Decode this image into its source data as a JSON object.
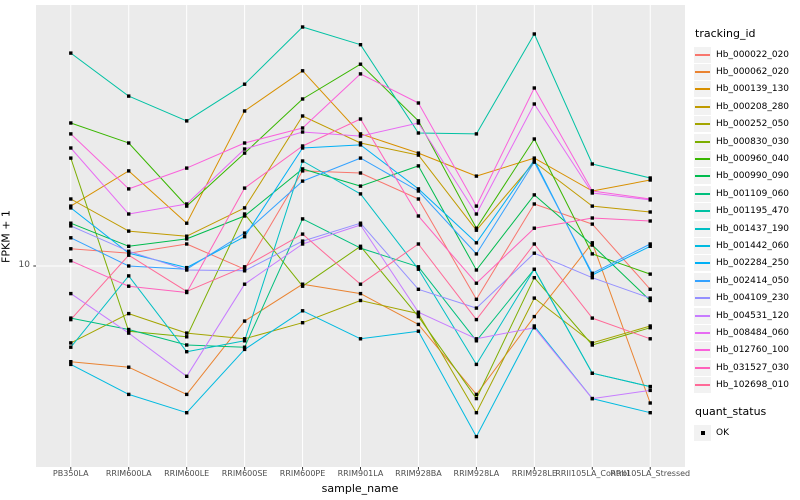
{
  "chart_data": {
    "type": "line",
    "title": "",
    "xlabel": "sample_name",
    "ylabel": "FPKM + 1",
    "y_scale": "log10",
    "y_ticks": [
      10
    ],
    "y_tick_labels": [
      "10"
    ],
    "ylim": [
      1.0,
      260
    ],
    "grid": true,
    "legend_position": "right",
    "panel_bg": "#EBEBEB",
    "grid_color": "#FFFFFF",
    "point_color": "#000000",
    "point_shape": "filled-square",
    "legend_titles": {
      "color": "tracking_id",
      "shape": "quant_status"
    },
    "shape_legend": [
      {
        "label": "OK",
        "shape": "filled-square",
        "color": "#000000"
      }
    ],
    "x": [
      "PB350LA",
      "RRIM600LA",
      "RRIM600LE",
      "RRIM600SE",
      "RRIM600PE",
      "RRIM901LA",
      "RRIM928BA",
      "RRIM928LA",
      "RRIM928LE",
      "RRII105LA_Control",
      "RRII105LA_Stressed"
    ],
    "series": [
      {
        "name": "Hb_000022_020",
        "color": "#F8766D",
        "values": [
          12.5,
          11.8,
          13.3,
          9.6,
          34.2,
          33.3,
          23.8,
          6.5,
          22.3,
          17.2,
          7.4
        ]
      },
      {
        "name": "Hb_000062_020",
        "color": "#EA8331",
        "values": [
          2.9,
          2.7,
          1.9,
          4.9,
          7.9,
          7.0,
          4.7,
          1.9,
          5.2,
          13.5,
          1.7
        ]
      },
      {
        "name": "Hb_000139_130",
        "color": "#D89000",
        "values": [
          21.7,
          34.2,
          17.4,
          74.3,
          125.0,
          55.2,
          43.1,
          32.0,
          40.4,
          26.4,
          30.4
        ]
      },
      {
        "name": "Hb_000208_280",
        "color": "#C09B00",
        "values": [
          23.8,
          15.7,
          14.7,
          21.2,
          69.6,
          49.1,
          42.0,
          15.9,
          38.4,
          21.7,
          20.1
        ]
      },
      {
        "name": "Hb_000252_050",
        "color": "#A3A500",
        "values": [
          3.7,
          5.4,
          4.2,
          3.9,
          4.8,
          6.4,
          5.4,
          1.5,
          6.6,
          3.7,
          4.6
        ]
      },
      {
        "name": "Hb_000830_030",
        "color": "#7CAE00",
        "values": [
          40.4,
          4.3,
          4.0,
          19.6,
          7.7,
          12.9,
          5.2,
          1.8,
          8.6,
          3.6,
          4.5
        ]
      },
      {
        "name": "Hb_000960_040",
        "color": "#39B600",
        "values": [
          63.6,
          49.1,
          21.7,
          43.1,
          86.7,
          136.0,
          65.3,
          16.3,
          51.7,
          11.7,
          9.0
        ]
      },
      {
        "name": "Hb_000990_090",
        "color": "#00BB4E",
        "values": [
          17.4,
          12.9,
          14.2,
          19.1,
          35.1,
          28.1,
          36.5,
          9.5,
          25.1,
          13.1,
          6.4
        ]
      },
      {
        "name": "Hb_001109_060",
        "color": "#00BF7D",
        "values": [
          5.1,
          4.4,
          3.6,
          3.5,
          18.4,
          12.6,
          9.9,
          3.8,
          9.6,
          2.5,
          2.1
        ]
      },
      {
        "name": "Hb_001195_470",
        "color": "#00C1A3",
        "values": [
          157.0,
          90.0,
          65.3,
          105.0,
          220.0,
          175.0,
          55.9,
          55.2,
          201.0,
          37.4,
          31.2
        ]
      },
      {
        "name": "Hb_001437_190",
        "color": "#00BFC4",
        "values": [
          3.5,
          8.8,
          3.3,
          3.8,
          38.9,
          25.4,
          9.6,
          2.8,
          9.6,
          2.5,
          2.1
        ]
      },
      {
        "name": "Hb_001442_060",
        "color": "#00BAE0",
        "values": [
          2.8,
          1.9,
          1.5,
          3.4,
          5.6,
          3.9,
          4.3,
          1.1,
          4.6,
          1.8,
          1.5
        ]
      },
      {
        "name": "Hb_002284_250",
        "color": "#00B0F6",
        "values": [
          21.2,
          11.8,
          9.8,
          14.6,
          46.0,
          47.9,
          27.1,
          13.5,
          39.4,
          8.9,
          12.9
        ]
      },
      {
        "name": "Hb_002414_050",
        "color": "#35A2FF",
        "values": [
          14.4,
          10.0,
          9.6,
          15.3,
          30.0,
          40.4,
          26.4,
          11.7,
          38.4,
          9.1,
          13.3
        ]
      },
      {
        "name": "Hb_004109_230",
        "color": "#9590FF",
        "values": [
          16.8,
          12.1,
          9.5,
          9.4,
          13.8,
          17.4,
          7.4,
          5.8,
          11.8,
          8.6,
          6.6
        ]
      },
      {
        "name": "Hb_004531_120",
        "color": "#C77CFF",
        "values": [
          7.0,
          4.2,
          2.4,
          7.9,
          13.3,
          17.0,
          5.5,
          3.9,
          4.5,
          1.8,
          2.0
        ]
      },
      {
        "name": "Hb_008484_060",
        "color": "#E76BF3",
        "values": [
          46.0,
          19.6,
          22.3,
          45.4,
          56.6,
          53.7,
          63.6,
          19.6,
          81.3,
          25.7,
          23.5
        ]
      },
      {
        "name": "Hb_012760_100",
        "color": "#FA62DB",
        "values": [
          55.2,
          27.1,
          35.5,
          49.1,
          59.6,
          120.0,
          82.4,
          21.7,
          100.0,
          26.4,
          23.8
        ]
      },
      {
        "name": "Hb_031527_030",
        "color": "#FF62BC",
        "values": [
          10.7,
          7.7,
          7.1,
          27.4,
          47.2,
          67.0,
          19.1,
          8.0,
          16.3,
          18.6,
          17.9
        ]
      },
      {
        "name": "Hb_102698_010",
        "color": "#FF6A98",
        "values": [
          5.0,
          11.5,
          7.2,
          9.9,
          15.1,
          7.9,
          13.3,
          5.0,
          13.3,
          5.1,
          3.9
        ]
      }
    ]
  }
}
